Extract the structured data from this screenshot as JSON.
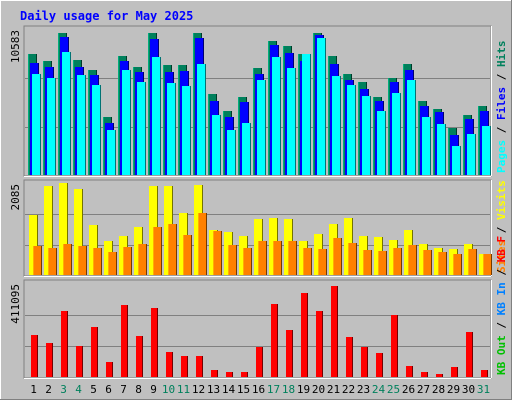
{
  "chart_data": {
    "type": "bar",
    "title": "Daily usage for May 2025",
    "x": [
      "1",
      "2",
      "3",
      "4",
      "5",
      "6",
      "7",
      "8",
      "9",
      "10",
      "11",
      "12",
      "13",
      "14",
      "15",
      "16",
      "17",
      "18",
      "19",
      "20",
      "21",
      "22",
      "23",
      "24",
      "25",
      "26",
      "27",
      "28",
      "29",
      "30",
      "31"
    ],
    "weekend_days": [
      3,
      4,
      10,
      11,
      17,
      18,
      24,
      25,
      31
    ],
    "colors": {
      "background": "#c0c0c0",
      "title": "#0000ff",
      "hits": "#00805c",
      "files": "#0000ff",
      "pages": "#00ffff",
      "visits": "#ffff00",
      "sites": "#ff8000",
      "kbin": "#0080ff",
      "kbout": "#00c000",
      "kbf": "#ff0000",
      "weekday": "#000000",
      "weekend": "#00805c"
    },
    "panels": [
      {
        "id": "requests",
        "max_label": "10583",
        "max": 10583,
        "legend": [
          "Hits",
          "Files",
          "Pages"
        ],
        "series": [
          {
            "name": "Hits",
            "values": [
              8800,
              8300,
              10400,
              8400,
              7700,
              4200,
              8700,
              7900,
              10400,
              8000,
              8000,
              10400,
              5900,
              4700,
              5700,
              7800,
              9800,
              9400,
              8800,
              10400,
              8700,
              7400,
              6800,
              5700,
              7100,
              8100,
              5400,
              4800,
              3400,
              4400,
              5000
            ]
          },
          {
            "name": "Files",
            "values": [
              8200,
              7900,
              10100,
              7900,
              7300,
              3800,
              8300,
              7500,
              9900,
              7500,
              7600,
              10000,
              5400,
              4200,
              5300,
              7400,
              9500,
              8900,
              8300,
              10200,
              8100,
              6900,
              6300,
              5400,
              6800,
              7700,
              5000,
              4600,
              2900,
              4100,
              4700
            ]
          },
          {
            "name": "Pages",
            "values": [
              7400,
              7100,
              9000,
              7300,
              6600,
              3300,
              7700,
              6800,
              8600,
              6700,
              6500,
              8100,
              4400,
              3300,
              3800,
              6900,
              8600,
              7800,
              8800,
              10000,
              7200,
              6600,
              5800,
              4700,
              6000,
              6900,
              4200,
              3700,
              2100,
              3000,
              3600
            ]
          }
        ]
      },
      {
        "id": "visitors",
        "max_label": "2085",
        "max": 2085,
        "legend": [
          "Visits",
          "Sites"
        ],
        "series": [
          {
            "name": "Visits",
            "values": [
              1370,
              2030,
              2100,
              1980,
              1150,
              770,
              900,
              1100,
              2040,
              2050,
              1420,
              2070,
              1040,
              990,
              900,
              1280,
              1300,
              1280,
              790,
              950,
              1170,
              1310,
              900,
              870,
              800,
              1030,
              710,
              620,
              600,
              720,
              490
            ]
          },
          {
            "name": "Sites",
            "values": [
              660,
              620,
              720,
              660,
              620,
              530,
              640,
              710,
              1100,
              1170,
              910,
              1420,
              1010,
              690,
              620,
              780,
              790,
              770,
              630,
              600,
              850,
              730,
              580,
              560,
              620,
              680,
              580,
              520,
              470,
              590,
              490
            ]
          }
        ]
      },
      {
        "id": "kbytes",
        "max_label": "411095",
        "max": 411095,
        "legend": [
          "KB F",
          "KB In",
          "KB Out"
        ],
        "series": [
          {
            "name": "KB F",
            "values": [
              185000,
              150000,
              290000,
              135000,
              220000,
              67000,
              318000,
              180000,
              306000,
              112000,
              95000,
              95000,
              32000,
              22000,
              22000,
              133000,
              322000,
              207000,
              370000,
              290000,
              402000,
              177000,
              132000,
              104000,
              275000,
              50000,
              24000,
              12000,
              44000,
              200000,
              30000
            ]
          }
        ]
      }
    ]
  }
}
